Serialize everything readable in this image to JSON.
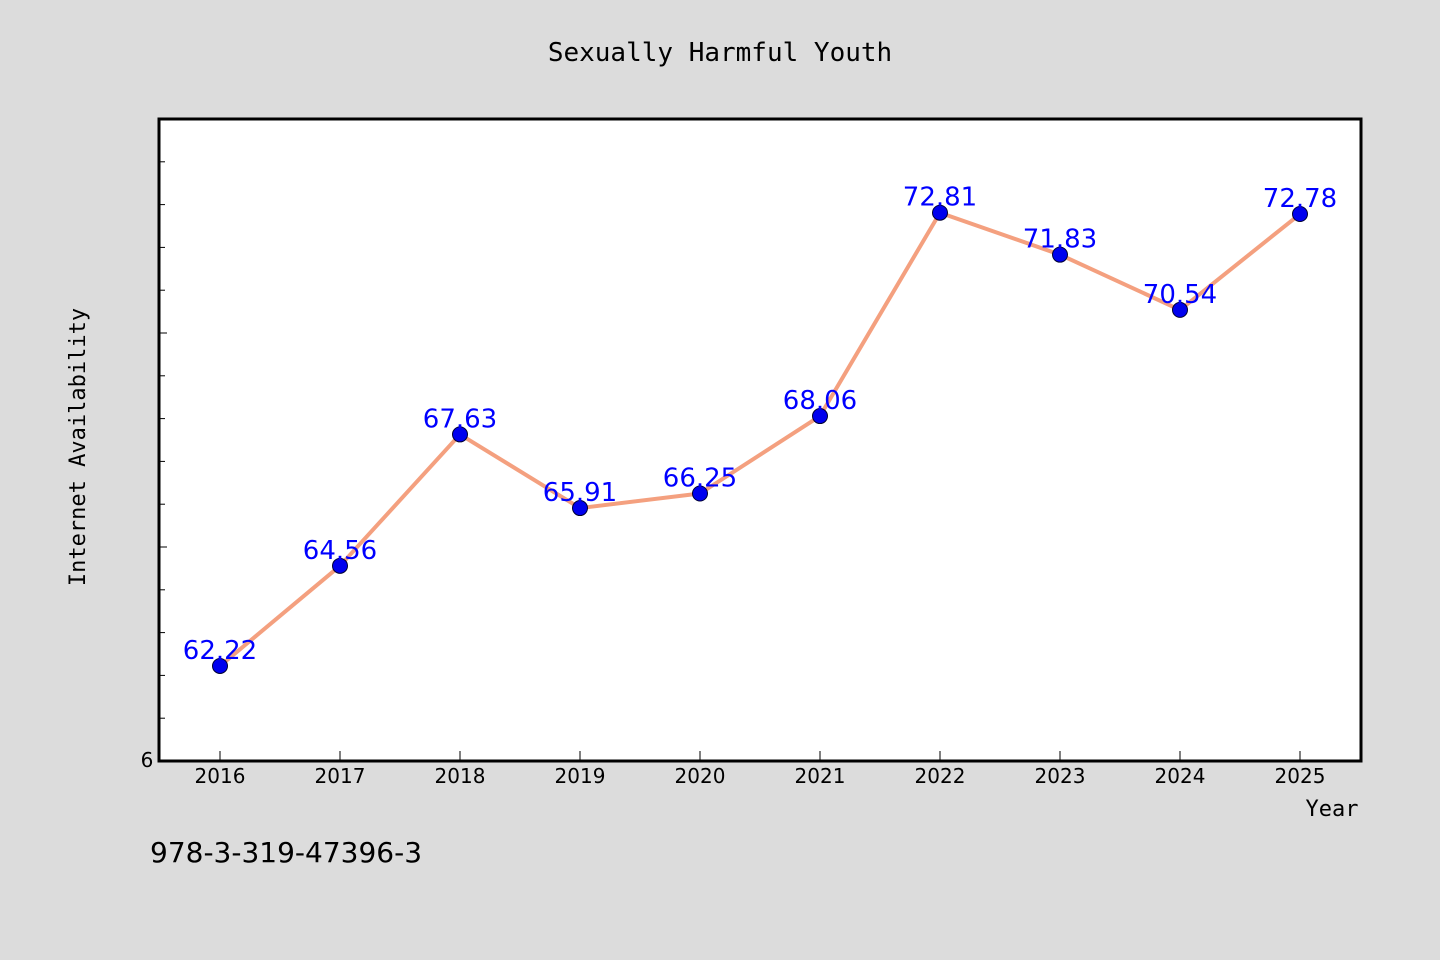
{
  "chart_data": {
    "type": "line",
    "title": "Sexually Harmful Youth",
    "xlabel": "Year",
    "ylabel": "Internet Availability",
    "categories": [
      "2016",
      "2017",
      "2018",
      "2019",
      "2020",
      "2021",
      "2022",
      "2023",
      "2024",
      "2025"
    ],
    "series": [
      {
        "values": [
          62.22,
          64.56,
          67.63,
          65.91,
          66.25,
          68.06,
          72.81,
          71.83,
          70.54,
          72.78
        ],
        "labels": [
          "62.22",
          "64.56",
          "67.63",
          "65.91",
          "66.25",
          "68.06",
          "72.81",
          "71.83",
          "70.54",
          "72.78"
        ],
        "line_color": "#f4a07f",
        "marker_color": "#0000ee"
      }
    ],
    "ylim": [
      60,
      75
    ],
    "y_tick_label": "6",
    "grid": false,
    "legend": "none"
  },
  "colors": {
    "background": "#dcdcdc",
    "plot_area": "#ffffff",
    "label_color": "#0000ff"
  },
  "footer": {
    "isbn": "978-3-319-47396-3"
  }
}
